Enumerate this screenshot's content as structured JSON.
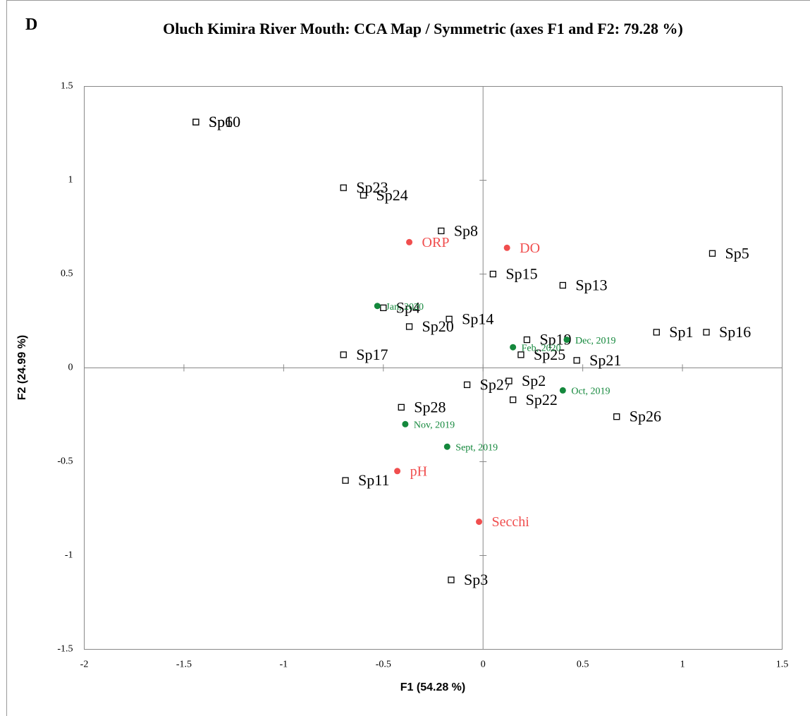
{
  "chart_data": {
    "type": "scatter",
    "panel_label": "D",
    "title": "Oluch Kimira River Mouth: CCA Map / Symmetric (axes F1 and F2: 79.28 %)",
    "xlabel": "F1 (54.28 %)",
    "ylabel": "F2 (24.99 %)",
    "xlim": [
      -2,
      1.5
    ],
    "ylim": [
      -1.5,
      1.5
    ],
    "xticks": [
      -2,
      -1.5,
      -1,
      -0.5,
      0,
      0.5,
      1,
      1.5
    ],
    "yticks": [
      -1.5,
      -1,
      -0.5,
      0,
      0.5,
      1,
      1.5
    ],
    "series": [
      {
        "color": "#000000",
        "marker": "open-square",
        "labels": [
          "Sp6",
          "Sp10",
          "Sp23",
          "Sp24",
          "Sp8",
          "Sp5",
          "Sp15",
          "Sp13",
          "Sp4",
          "Sp14",
          "Sp20",
          "Sp19",
          "Sp1",
          "Sp16",
          "Sp25",
          "Sp21",
          "Sp17",
          "Sp27",
          "Sp2",
          "Sp22",
          "Sp26",
          "Sp28",
          "Sp11",
          "Sp3"
        ],
        "x": [
          -1.44,
          -1.44,
          -0.7,
          -0.6,
          -0.21,
          1.15,
          0.05,
          0.4,
          -0.5,
          -0.17,
          -0.37,
          0.22,
          0.87,
          1.12,
          0.19,
          0.47,
          -0.7,
          -0.08,
          0.13,
          0.15,
          0.67,
          -0.41,
          -0.69,
          -0.16
        ],
        "values": [
          1.31,
          1.31,
          0.96,
          0.92,
          0.73,
          0.61,
          0.5,
          0.44,
          0.32,
          0.26,
          0.22,
          0.15,
          0.19,
          0.19,
          0.07,
          0.04,
          0.07,
          -0.09,
          -0.07,
          -0.17,
          -0.26,
          -0.21,
          -0.6,
          -1.13
        ]
      },
      {
        "color": "#f04e4e",
        "marker": "circle",
        "labels": [
          "ORP",
          "DO",
          "pH",
          "Secchi"
        ],
        "x": [
          -0.37,
          0.12,
          -0.43,
          -0.02
        ],
        "values": [
          0.67,
          0.64,
          -0.55,
          -0.82
        ]
      },
      {
        "color": "#14883c",
        "marker": "circle",
        "labels": [
          "Jan, 2020",
          "Dec, 2019",
          "Feb, 2020",
          "Oct, 2019",
          "Nov, 2019",
          "Sept, 2019"
        ],
        "x": [
          -0.53,
          0.42,
          0.15,
          0.4,
          -0.39,
          -0.18
        ],
        "values": [
          0.33,
          0.15,
          0.11,
          -0.12,
          -0.3,
          -0.42
        ]
      }
    ]
  }
}
